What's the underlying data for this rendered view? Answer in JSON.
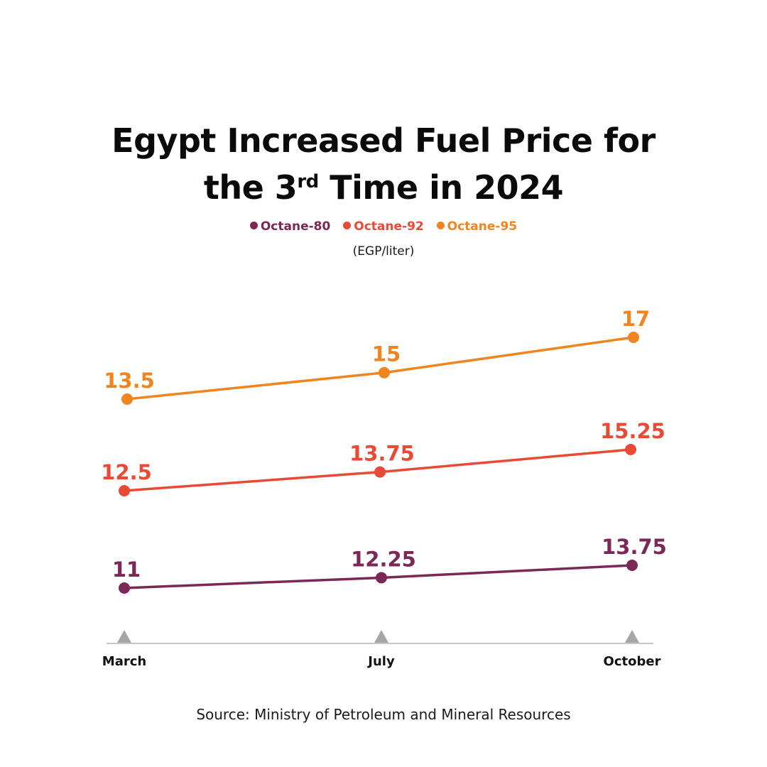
{
  "chart_data": {
    "type": "line",
    "title_line1": "Egypt Increased Fuel Price for",
    "title_line2_pre": "the 3",
    "title_line2_sup": "rd",
    "title_line2_post": " Time in 2024",
    "unit": "(EGP/liter)",
    "categories": [
      "March",
      "July",
      "October"
    ],
    "series": [
      {
        "name": "Octane-80",
        "color": "#7b2857",
        "values": [
          11,
          12.25,
          13.75
        ],
        "labels": [
          "11",
          "12.25",
          "13.75"
        ]
      },
      {
        "name": "Octane-92",
        "color": "#e84a36",
        "values": [
          12.5,
          13.75,
          15.25
        ],
        "labels": [
          "12.5",
          "13.75",
          "15.25"
        ]
      },
      {
        "name": "Octane-95",
        "color": "#f0851f",
        "values": [
          13.5,
          15,
          17
        ],
        "labels": [
          "13.5",
          "15",
          "17"
        ]
      }
    ],
    "legend_position": "top-center",
    "grid": false
  },
  "source": "Source: Ministry of Petroleum and Mineral Resources"
}
